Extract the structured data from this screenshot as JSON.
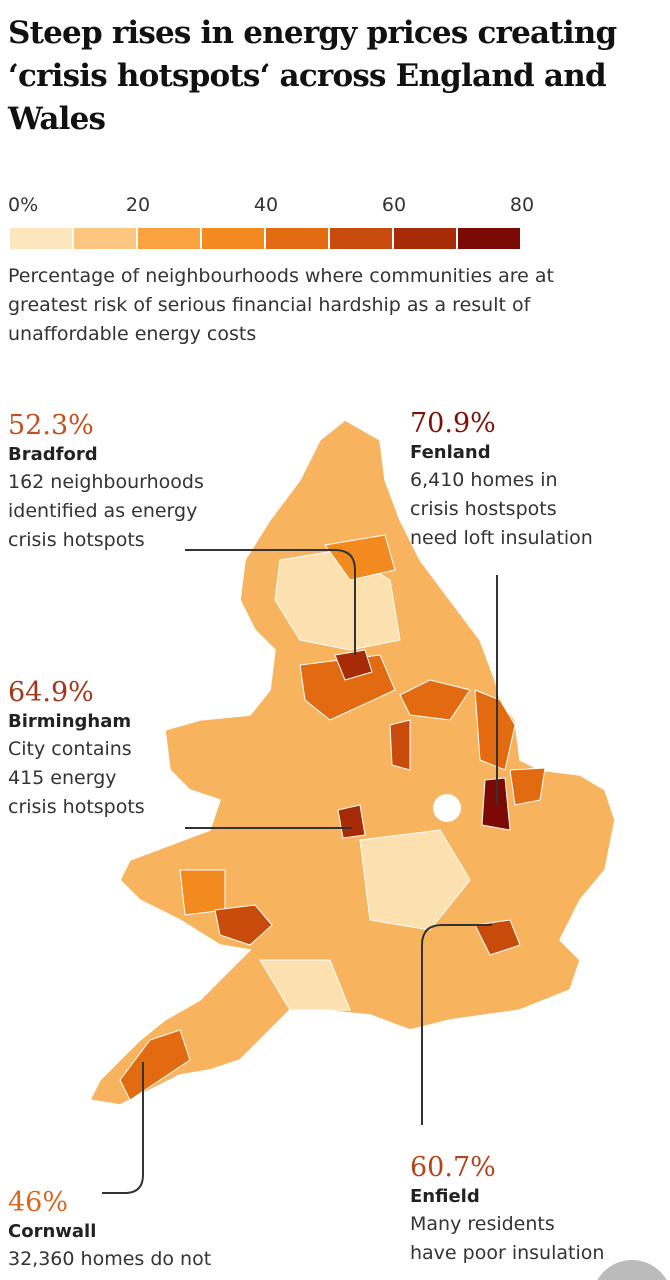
{
  "header": {
    "title": "Steep rises in energy prices creating ‘crisis hotspots‘ across England and Wales"
  },
  "legend": {
    "labels": [
      "0%",
      "20",
      "40",
      "60",
      "80"
    ],
    "colors": [
      "#fde6bd",
      "#fcc580",
      "#f9a23e",
      "#f28a20",
      "#e26b12",
      "#c94b0b",
      "#a72b07",
      "#7b0a05"
    ],
    "description": "Percentage of neighbourhoods where communities are at greatest risk of serious financial hardship as a result of unaffordable energy costs"
  },
  "annotations": [
    {
      "value": "52.3%",
      "place": "Bradford",
      "lines": [
        "162 neighbourhoods",
        "identified as energy",
        "crisis hotspots"
      ],
      "color": "#c2501c"
    },
    {
      "value": "70.9%",
      "place": "Fenland",
      "lines": [
        "6,410 homes in",
        "crisis hostspots",
        "need loft insulation"
      ],
      "color": "#7e1108"
    },
    {
      "value": "64.9%",
      "place": "Birmingham",
      "lines": [
        "City contains",
        "415 energy",
        "crisis hotspots"
      ],
      "color": "#a2361a"
    },
    {
      "value": "46%",
      "place": "Cornwall",
      "lines": [
        "32,360 homes do not"
      ],
      "color": "#d9661f"
    },
    {
      "value": "60.7%",
      "place": "Enfield",
      "lines": [
        "Many residents",
        "have poor insulation"
      ],
      "color": "#b3441b"
    }
  ]
}
